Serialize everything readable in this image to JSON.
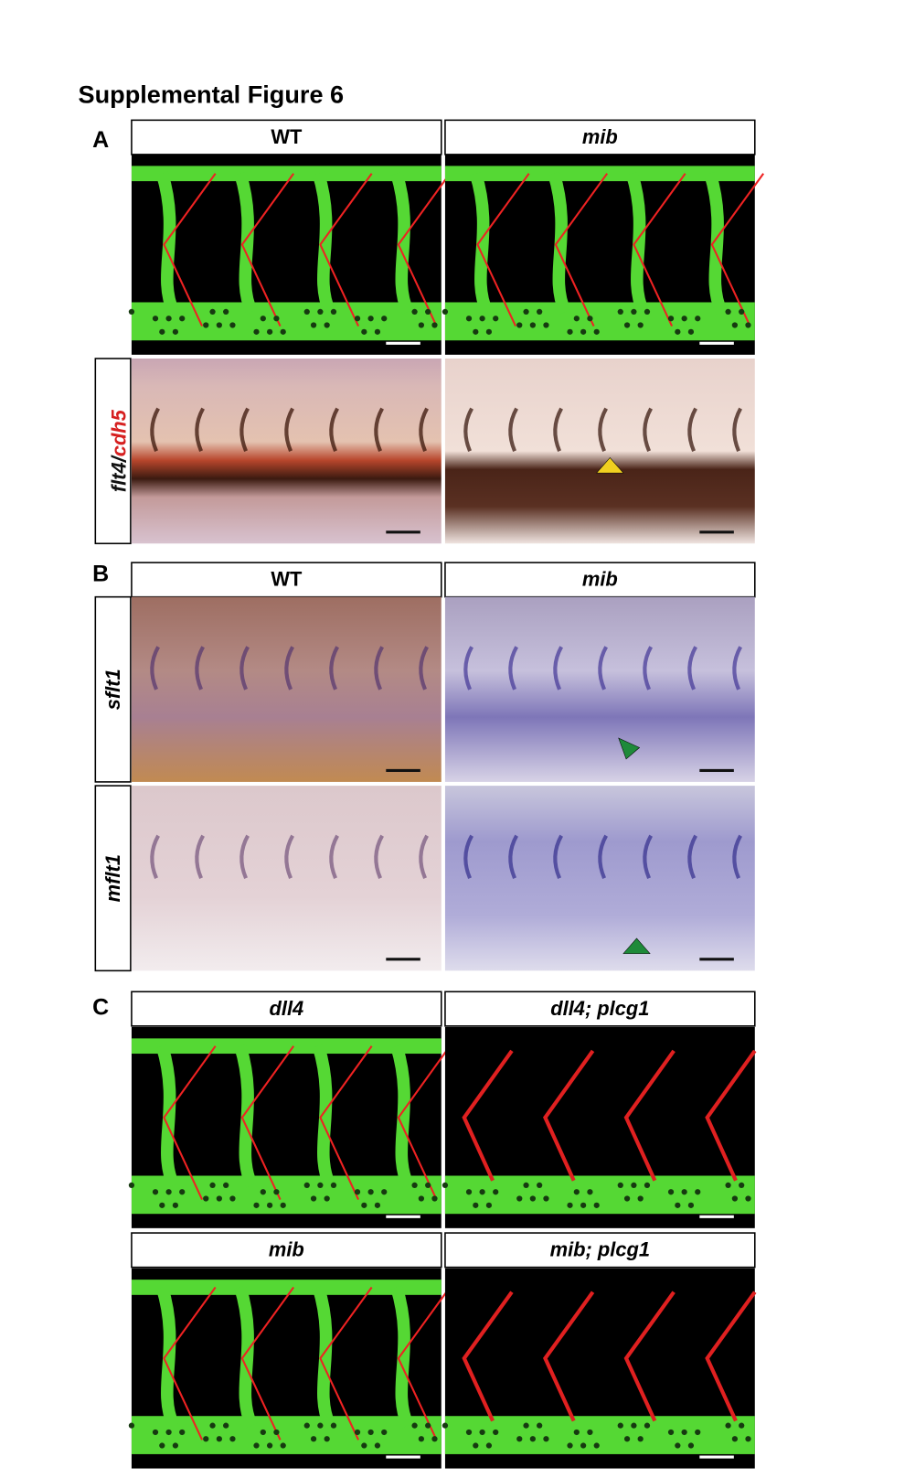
{
  "header": {
    "title": "Supplemental Figure 6"
  },
  "panels": [
    {
      "label": "A",
      "columns": [
        "WT",
        "mib"
      ],
      "row_label": {
        "gene1": "flt4",
        "separator": "/",
        "gene2": "cdh5"
      }
    },
    {
      "label": "B",
      "columns": [
        "WT",
        "mib"
      ],
      "row_labels": [
        "sflt1",
        "mflt1"
      ]
    },
    {
      "label": "C",
      "columns": [
        "dll4",
        "dll4; plcg1"
      ],
      "columns_lower": [
        "mib",
        "mib; plcg1"
      ]
    }
  ]
}
